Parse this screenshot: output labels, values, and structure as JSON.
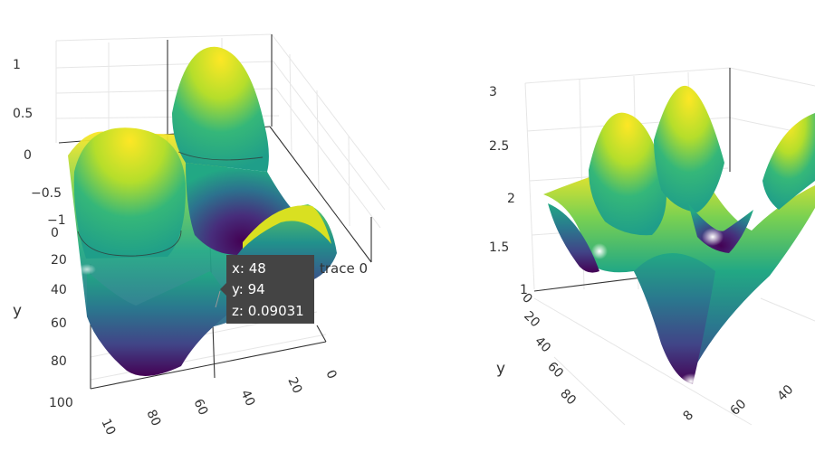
{
  "chart_data": [
    {
      "type": "surface",
      "colorscale": "viridis",
      "z_ticks": [
        "1",
        "0.5",
        "0",
        "−0.5",
        "−1"
      ],
      "y_ticks": [
        "0",
        "20",
        "40",
        "60",
        "80",
        "100"
      ],
      "x_ticks": [
        "10",
        "80",
        "60",
        "40",
        "20",
        "0"
      ],
      "ylabel": "y",
      "zlim": [
        -1,
        1
      ],
      "hover": {
        "x_line": "x: 48",
        "y_line": "y: 94",
        "z_line": "z: 0.09031",
        "trace_name": "trace 0"
      }
    },
    {
      "type": "surface",
      "colorscale": "viridis",
      "z_ticks": [
        "3",
        "2.5",
        "2",
        "1.5",
        "1"
      ],
      "y_ticks": [
        "0",
        "20",
        "40",
        "60",
        "80"
      ],
      "x_ticks": [
        "8",
        "60",
        "40"
      ],
      "ylabel": "y",
      "zlim": [
        1,
        3
      ]
    }
  ]
}
